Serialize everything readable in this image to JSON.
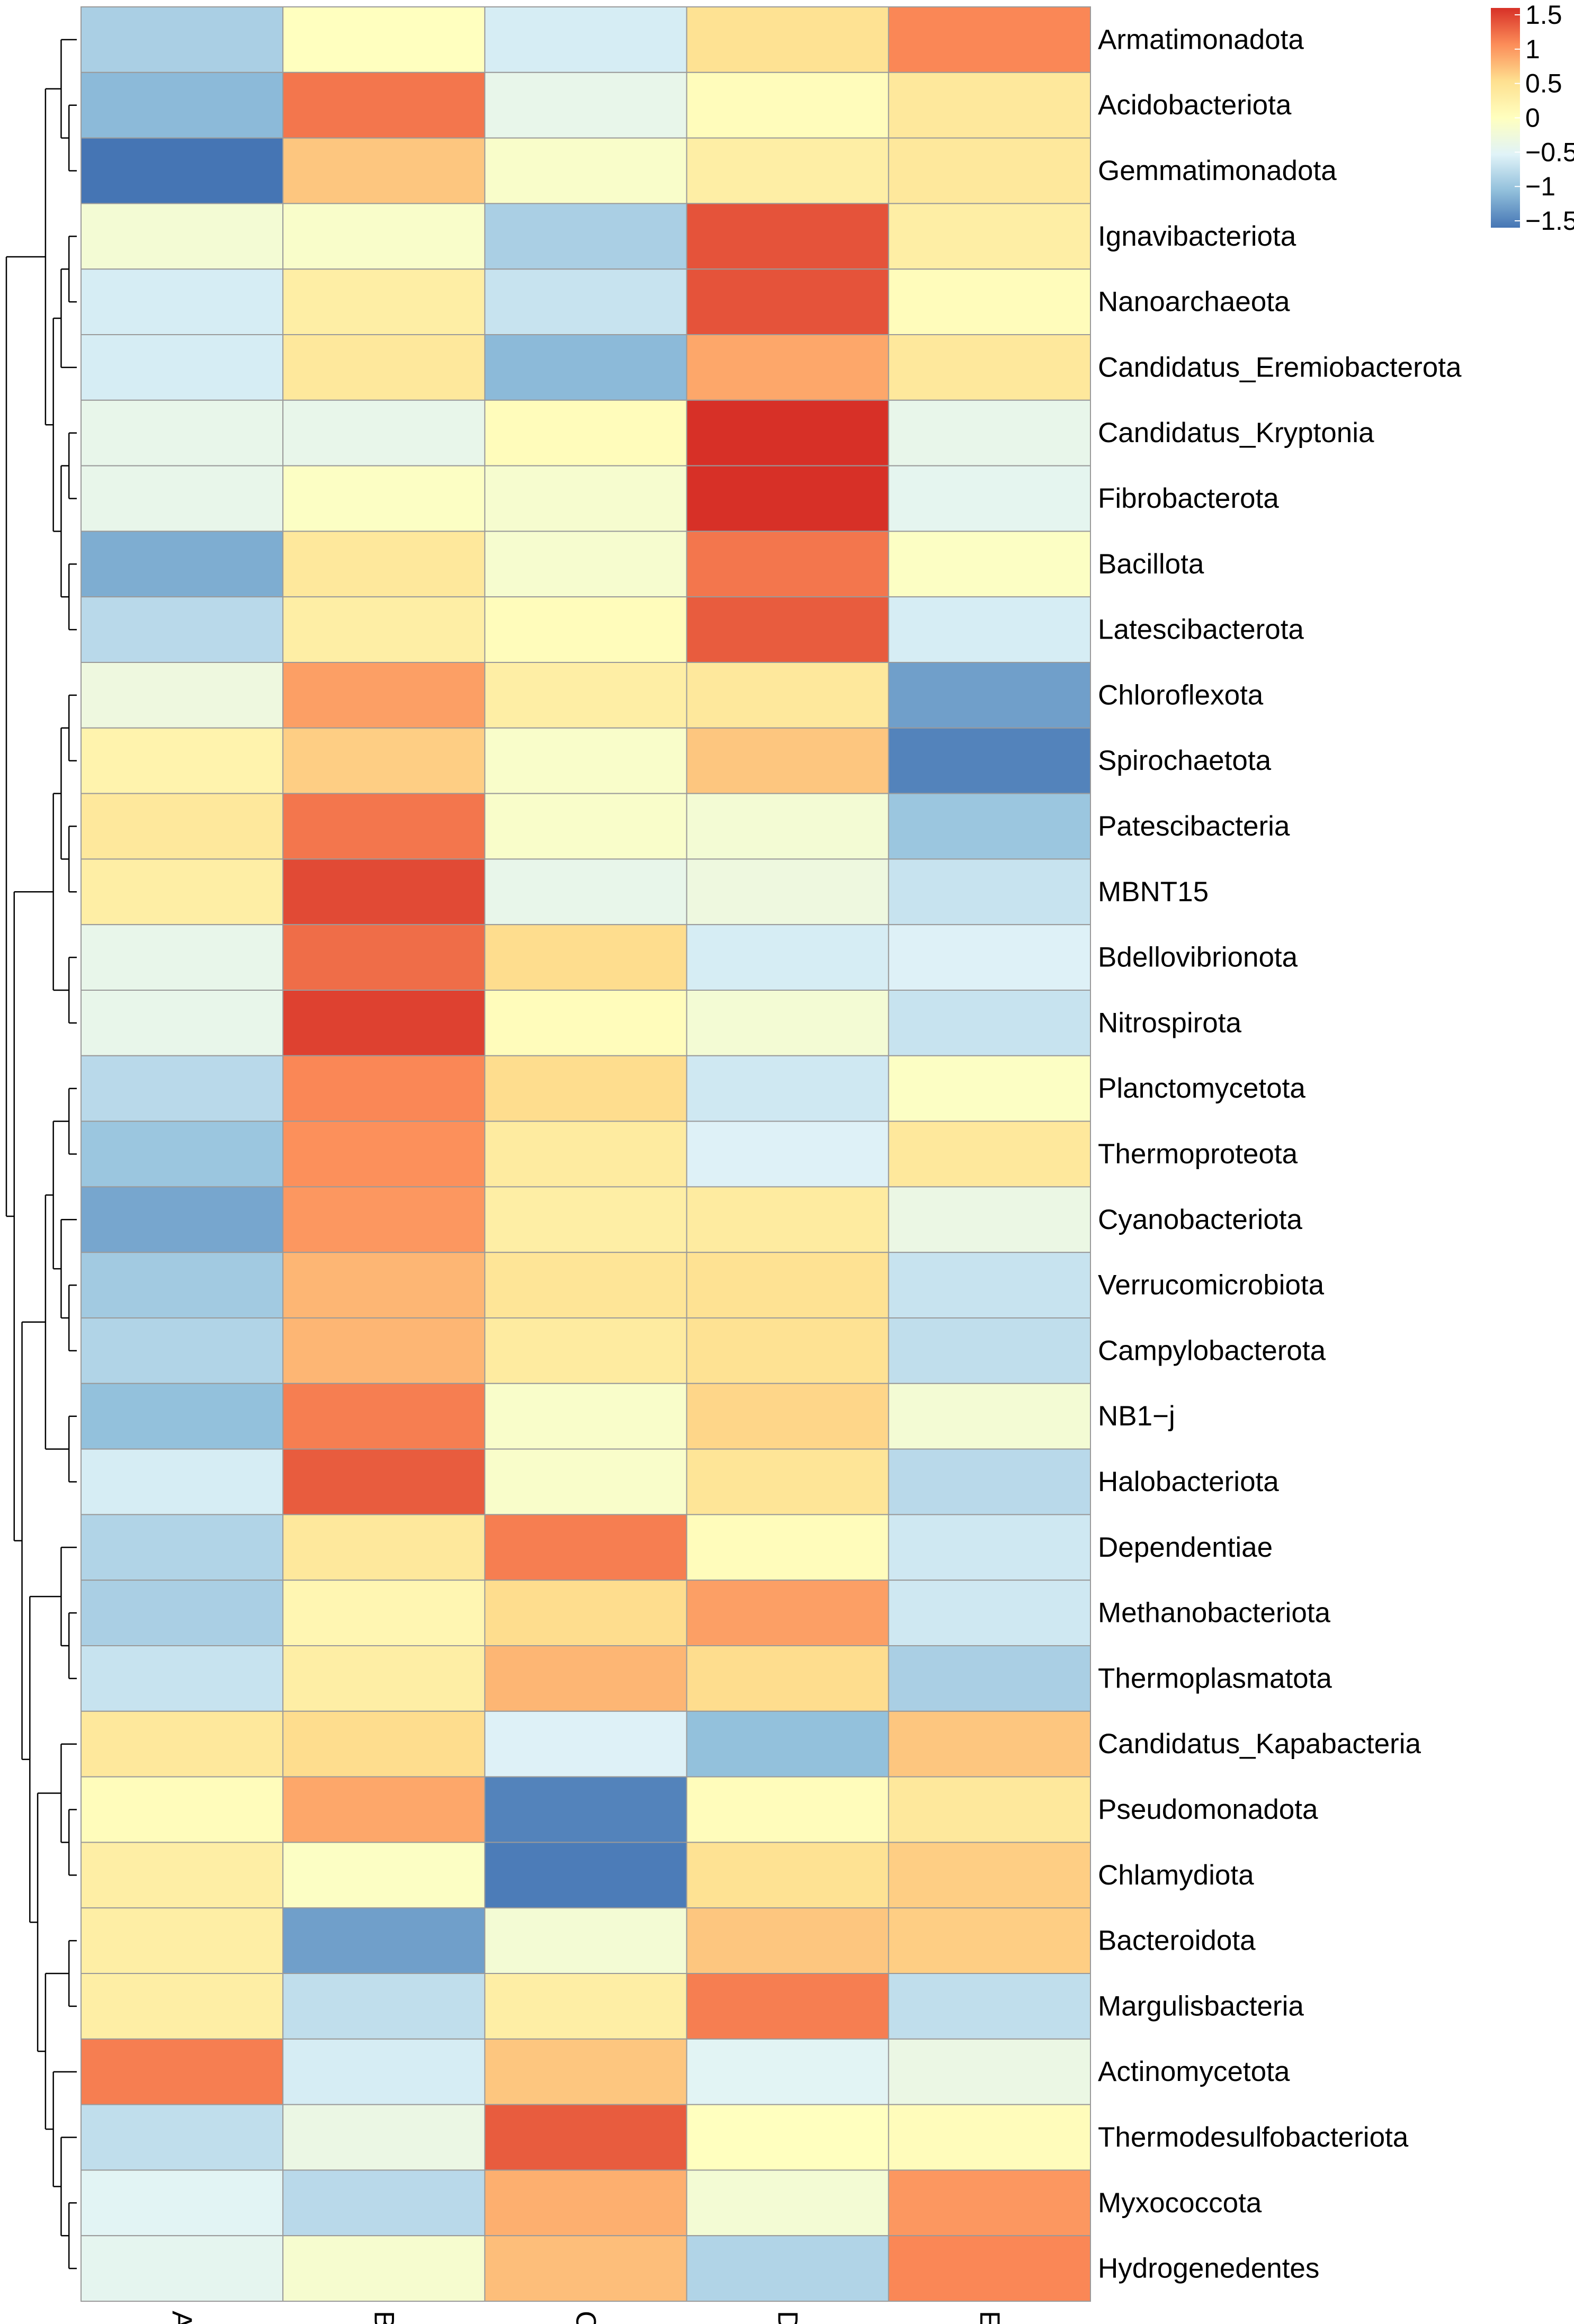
{
  "chart_data": {
    "type": "heatmap",
    "columns": [
      "A",
      "B",
      "C",
      "D",
      "E"
    ],
    "rows": [
      "Armatimonadota",
      "Acidobacteriota",
      "Gemmatimonadota",
      "Ignavibacteriota",
      "Nanoarchaeota",
      "Candidatus_Eremiobacterota",
      "Candidatus_Kryptonia",
      "Fibrobacterota",
      "Bacillota",
      "Latescibacterota",
      "Chloroflexota",
      "Spirochaetota",
      "Patescibacteria",
      "MBNT15",
      "Bdellovibrionota",
      "Nitrospirota",
      "Planctomycetota",
      "Thermoproteota",
      "Cyanobacteriota",
      "Verrucomicrobiota",
      "Campylobacterota",
      "NB1−j",
      "Halobacteriota",
      "Dependentiae",
      "Methanobacteriota",
      "Thermoplasmatota",
      "Candidatus_Kapabacteria",
      "Pseudomonadota",
      "Chlamydiota",
      "Bacteroidota",
      "Margulisbacteria",
      "Actinomycetota",
      "Thermodesulfobacteriota",
      "Myxococcota",
      "Hydrogenedentes"
    ],
    "values": [
      [
        -0.9,
        0.0,
        -0.6,
        0.5,
        1.1
      ],
      [
        -1.1,
        1.2,
        -0.4,
        0.05,
        0.4
      ],
      [
        -1.6,
        0.7,
        -0.1,
        0.3,
        0.4
      ],
      [
        -0.2,
        -0.1,
        -0.9,
        1.4,
        0.3
      ],
      [
        -0.6,
        0.3,
        -0.7,
        1.4,
        0.05
      ],
      [
        -0.6,
        0.4,
        -1.1,
        0.9,
        0.4
      ],
      [
        -0.4,
        -0.4,
        0.05,
        1.6,
        -0.4
      ],
      [
        -0.4,
        -0.05,
        -0.15,
        1.6,
        -0.45
      ],
      [
        -1.2,
        0.4,
        -0.15,
        1.2,
        -0.05
      ],
      [
        -0.8,
        0.3,
        0.05,
        1.35,
        -0.6
      ],
      [
        -0.3,
        0.95,
        0.3,
        0.4,
        -1.3
      ],
      [
        0.2,
        0.65,
        -0.1,
        0.7,
        -1.5
      ],
      [
        0.4,
        1.2,
        -0.1,
        -0.2,
        -1.0
      ],
      [
        0.3,
        1.45,
        -0.4,
        -0.3,
        -0.7
      ],
      [
        -0.4,
        1.25,
        0.55,
        -0.6,
        -0.55
      ],
      [
        -0.4,
        1.5,
        0.05,
        -0.2,
        -0.7
      ],
      [
        -0.8,
        1.1,
        0.55,
        -0.65,
        -0.05
      ],
      [
        -1.0,
        1.05,
        0.35,
        -0.55,
        0.4
      ],
      [
        -1.25,
        1.0,
        0.3,
        0.35,
        -0.35
      ],
      [
        -0.95,
        0.8,
        0.45,
        0.5,
        -0.7
      ],
      [
        -0.85,
        0.8,
        0.35,
        0.5,
        -0.75
      ],
      [
        -1.05,
        1.15,
        -0.1,
        0.6,
        -0.2
      ],
      [
        -0.6,
        1.35,
        -0.1,
        0.45,
        -0.8
      ],
      [
        -0.85,
        0.4,
        1.15,
        0.05,
        -0.65
      ],
      [
        -0.9,
        0.15,
        0.55,
        0.95,
        -0.65
      ],
      [
        -0.7,
        0.3,
        0.8,
        0.55,
        -0.9
      ],
      [
        0.4,
        0.55,
        -0.55,
        -1.05,
        0.7
      ],
      [
        0.05,
        0.9,
        -1.5,
        0.05,
        0.4
      ],
      [
        0.3,
        -0.05,
        -1.55,
        0.5,
        0.65
      ],
      [
        0.3,
        -1.3,
        -0.2,
        0.7,
        0.65
      ],
      [
        0.3,
        -0.75,
        0.3,
        1.15,
        -0.75
      ],
      [
        1.15,
        -0.6,
        0.7,
        -0.5,
        -0.35
      ],
      [
        -0.75,
        -0.35,
        1.35,
        0.0,
        0.05
      ],
      [
        -0.5,
        -0.8,
        0.85,
        -0.2,
        1.0
      ],
      [
        -0.45,
        -0.15,
        0.75,
        -0.85,
        1.1
      ]
    ],
    "scale": {
      "min": -1.6,
      "max": 1.6,
      "colors": [
        "#4575b4",
        "#91bfdb",
        "#e0f3f8",
        "#ffffbf",
        "#fee090",
        "#fc8d59",
        "#d73027"
      ],
      "ticks": [
        "1.5",
        "1",
        "0.5",
        "0",
        "−0.5",
        "−1",
        "−1.5"
      ]
    },
    "cell_border_color": "#9a9a9a",
    "dendrogram_color": "#000000",
    "dendrogram": [
      [
        [
          "Armatimonadota",
          [
            "Acidobacteriota",
            "Gemmatimonadota"
          ]
        ],
        [
          [
            [
              "Ignavibacteriota",
              "Nanoarchaeota"
            ],
            "Candidatus_Eremiobacterota"
          ],
          [
            [
              "Candidatus_Kryptonia",
              "Fibrobacterota"
            ],
            [
              "Bacillota",
              "Latescibacterota"
            ]
          ]
        ]
      ],
      [
        [
          [
            [
              "Chloroflexota",
              "Spirochaetota"
            ],
            [
              "Patescibacteria",
              "MBNT15"
            ]
          ],
          [
            "Bdellovibrionota",
            "Nitrospirota"
          ]
        ],
        [
          [
            [
              [
                "Planctomycetota",
                "Thermoproteota"
              ],
              [
                "Cyanobacteriota",
                [
                  "Verrucomicrobiota",
                  "Campylobacterota"
                ]
              ]
            ],
            [
              "NB1−j",
              "Halobacteriota"
            ]
          ],
          [
            [
              "Dependentiae",
              [
                "Methanobacteriota",
                "Thermoplasmatota"
              ]
            ],
            [
              [
                "Candidatus_Kapabacteria",
                [
                  "Pseudomonadota",
                  "Chlamydiota"
                ]
              ],
              [
                [
                  "Bacteroidota",
                  "Margulisbacteria"
                ],
                [
                  "Actinomycetota",
                  [
                    "Thermodesulfobacteriota",
                    [
                      "Myxococcota",
                      "Hydrogenedentes"
                    ]
                  ]
                ]
              ]
            ]
          ]
        ]
      ]
    ]
  }
}
